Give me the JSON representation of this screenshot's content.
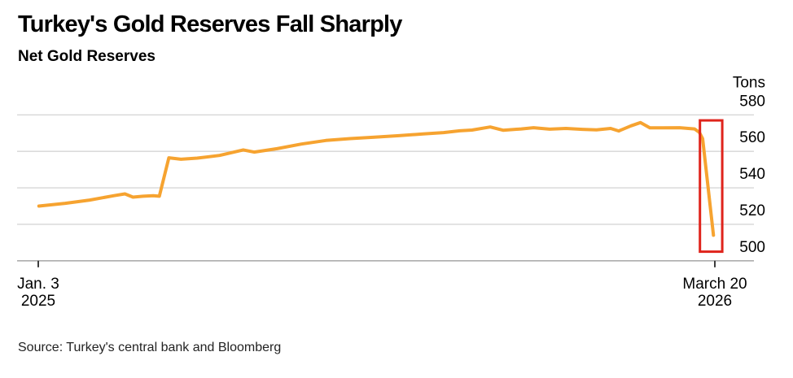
{
  "header": {
    "title": "Turkey's Gold Reserves Fall Sharply",
    "subtitle": "Net Gold Reserves"
  },
  "footer": {
    "source": "Source: Turkey's central bank and Bloomberg"
  },
  "chart_data": {
    "type": "line",
    "title": "Turkey's Gold Reserves Fall Sharply",
    "subtitle": "Net Gold Reserves",
    "unit_label": "Tons",
    "ylabel": "Tons",
    "ylim": [
      497,
      584
    ],
    "y_ticks": [
      580,
      560,
      540,
      520,
      500
    ],
    "grid": true,
    "legend": "none",
    "x_ticks": [
      {
        "line1": "Jan. 3",
        "line2": "2025",
        "frac": 0
      },
      {
        "line1": "March 20",
        "line2": "2026",
        "frac": 1
      }
    ],
    "series": [
      {
        "name": "Net Gold Reserves (tons)",
        "color": "#F6A330",
        "points": [
          [
            0.001,
            530.0
          ],
          [
            0.04,
            531.5
          ],
          [
            0.076,
            533.3
          ],
          [
            0.112,
            535.7
          ],
          [
            0.128,
            536.7
          ],
          [
            0.14,
            534.9
          ],
          [
            0.155,
            535.4
          ],
          [
            0.17,
            535.7
          ],
          [
            0.179,
            535.4
          ],
          [
            0.193,
            556.5
          ],
          [
            0.211,
            555.7
          ],
          [
            0.235,
            556.3
          ],
          [
            0.268,
            557.8
          ],
          [
            0.303,
            560.8
          ],
          [
            0.319,
            559.6
          ],
          [
            0.353,
            561.5
          ],
          [
            0.389,
            564.0
          ],
          [
            0.425,
            566.0
          ],
          [
            0.461,
            567.0
          ],
          [
            0.497,
            567.8
          ],
          [
            0.533,
            568.6
          ],
          [
            0.569,
            569.6
          ],
          [
            0.599,
            570.3
          ],
          [
            0.623,
            571.3
          ],
          [
            0.641,
            571.7
          ],
          [
            0.668,
            573.4
          ],
          [
            0.687,
            571.6
          ],
          [
            0.714,
            572.3
          ],
          [
            0.732,
            573.0
          ],
          [
            0.756,
            572.2
          ],
          [
            0.78,
            572.6
          ],
          [
            0.804,
            572.1
          ],
          [
            0.825,
            571.8
          ],
          [
            0.846,
            572.6
          ],
          [
            0.858,
            571.2
          ],
          [
            0.876,
            574.0
          ],
          [
            0.89,
            575.8
          ],
          [
            0.904,
            572.9
          ],
          [
            0.924,
            572.9
          ],
          [
            0.948,
            573.0
          ],
          [
            0.97,
            572.3
          ],
          [
            0.977,
            570.5
          ],
          [
            0.982,
            567.0
          ],
          [
            0.998,
            514.0
          ]
        ]
      }
    ],
    "annotations": [
      {
        "type": "highlight_box",
        "x0_frac": 0.978,
        "x1_frac": 1.011,
        "value_min": 505,
        "value_max": 577,
        "color": "#DF241C"
      }
    ],
    "colors": {
      "line": "#F6A330",
      "highlight": "#DF241C",
      "gridline": "#D6D6D6",
      "axis": "#ADADAD",
      "tick": "#3C3C3C",
      "text": "#000000"
    }
  }
}
